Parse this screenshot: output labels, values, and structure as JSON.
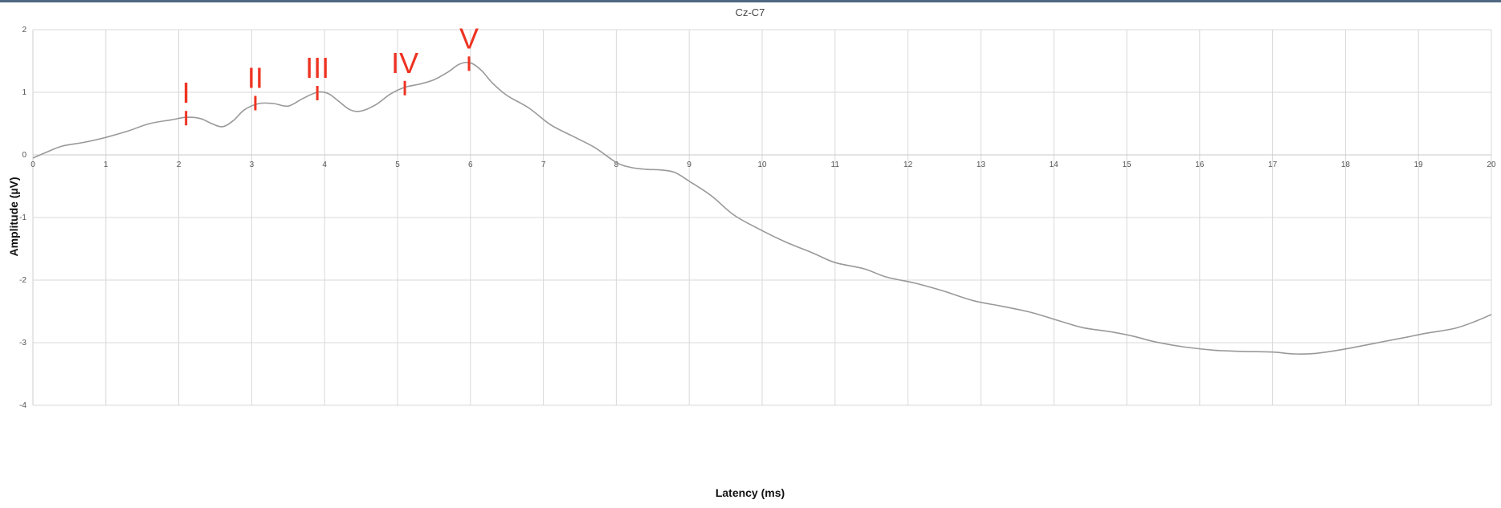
{
  "chart_data": {
    "type": "line",
    "title": "Cz-C7",
    "xlabel": "Latency (ms)",
    "ylabel": "Amplitude (µV)",
    "xlim": [
      0,
      20
    ],
    "ylim": [
      -4,
      2
    ],
    "x_ticks": [
      "0",
      "1",
      "2",
      "3",
      "4",
      "5",
      "6",
      "7",
      "8",
      "9",
      "10",
      "11",
      "12",
      "13",
      "14",
      "15",
      "16",
      "17",
      "18",
      "19",
      "20"
    ],
    "y_ticks": [
      "2",
      "1",
      "0",
      "-1",
      "-2",
      "-3",
      "-4"
    ],
    "grid": true,
    "line_color": "#999999",
    "peak_color": "#ee3322",
    "series": [
      {
        "x": [
          0,
          0.2,
          0.4,
          0.7,
          1.0,
          1.3,
          1.6,
          1.9,
          2.1,
          2.3,
          2.45,
          2.6,
          2.75,
          2.9,
          3.1,
          3.3,
          3.5,
          3.7,
          3.9,
          4.05,
          4.2,
          4.35,
          4.5,
          4.7,
          4.9,
          5.1,
          5.3,
          5.5,
          5.7,
          5.85,
          6.0,
          6.15,
          6.3,
          6.5,
          6.8,
          7.1,
          7.4,
          7.7,
          8.0,
          8.2,
          8.4,
          8.6,
          8.8,
          9.0,
          9.3,
          9.6,
          9.9,
          10.3,
          10.7,
          11.0,
          11.4,
          11.7,
          12.1,
          12.5,
          12.9,
          13.3,
          13.7,
          14.1,
          14.4,
          14.8,
          15.1,
          15.4,
          15.8,
          16.2,
          16.6,
          17.0,
          17.3,
          17.6,
          18.0,
          18.4,
          18.8,
          19.1,
          19.5,
          19.8,
          20.0
        ],
        "y": [
          -0.05,
          0.05,
          0.14,
          0.2,
          0.28,
          0.38,
          0.5,
          0.56,
          0.6,
          0.58,
          0.5,
          0.45,
          0.55,
          0.72,
          0.82,
          0.82,
          0.78,
          0.9,
          1.0,
          0.98,
          0.85,
          0.72,
          0.7,
          0.8,
          0.97,
          1.08,
          1.13,
          1.2,
          1.33,
          1.45,
          1.47,
          1.35,
          1.15,
          0.95,
          0.75,
          0.48,
          0.3,
          0.12,
          -0.12,
          -0.2,
          -0.23,
          -0.24,
          -0.28,
          -0.42,
          -0.65,
          -0.95,
          -1.15,
          -1.38,
          -1.57,
          -1.72,
          -1.82,
          -1.95,
          -2.05,
          -2.18,
          -2.33,
          -2.42,
          -2.52,
          -2.66,
          -2.76,
          -2.83,
          -2.9,
          -2.99,
          -3.07,
          -3.12,
          -3.14,
          -3.15,
          -3.18,
          -3.17,
          -3.1,
          -3.01,
          -2.92,
          -2.85,
          -2.77,
          -2.65,
          -2.55
        ]
      }
    ],
    "peaks": [
      {
        "label": "I",
        "x": 2.1,
        "y": 0.6
      },
      {
        "label": "II",
        "x": 3.05,
        "y": 0.84
      },
      {
        "label": "III",
        "x": 3.9,
        "y": 1.0
      },
      {
        "label": "IV",
        "x": 5.1,
        "y": 1.08
      },
      {
        "label": "V",
        "x": 5.98,
        "y": 1.47
      }
    ]
  }
}
